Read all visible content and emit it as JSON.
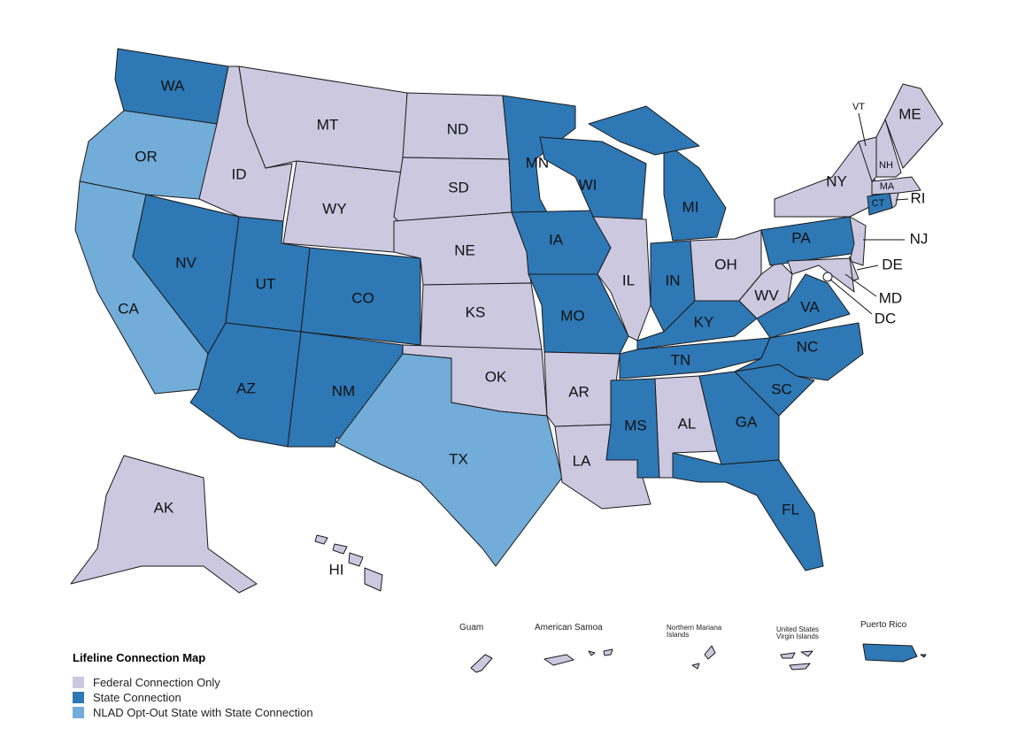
{
  "map": {
    "title": "Lifeline Connection Map",
    "legend": [
      {
        "label": "Federal Connection Only",
        "color": "#cbc8e0"
      },
      {
        "label": "State Connection",
        "color": "#2e78b5"
      },
      {
        "label": "NLAD Opt-Out State with State Connection",
        "color": "#72acd8"
      }
    ],
    "states": [
      {
        "label": "WA",
        "category": 1
      },
      {
        "label": "OR",
        "category": 2
      },
      {
        "label": "CA",
        "category": 2
      },
      {
        "label": "ID",
        "category": 0
      },
      {
        "label": "NV",
        "category": 1
      },
      {
        "label": "MT",
        "category": 0
      },
      {
        "label": "WY",
        "category": 0
      },
      {
        "label": "UT",
        "category": 1
      },
      {
        "label": "CO",
        "category": 1
      },
      {
        "label": "AZ",
        "category": 1
      },
      {
        "label": "NM",
        "category": 1
      },
      {
        "label": "ND",
        "category": 0
      },
      {
        "label": "SD",
        "category": 0
      },
      {
        "label": "NE",
        "category": 0
      },
      {
        "label": "KS",
        "category": 0
      },
      {
        "label": "OK",
        "category": 0
      },
      {
        "label": "TX",
        "category": 2
      },
      {
        "label": "MN",
        "category": 1
      },
      {
        "label": "IA",
        "category": 1
      },
      {
        "label": "MO",
        "category": 1
      },
      {
        "label": "AR",
        "category": 0
      },
      {
        "label": "LA",
        "category": 0
      },
      {
        "label": "WI",
        "category": 1
      },
      {
        "label": "MI",
        "category": 1
      },
      {
        "label": "IL",
        "category": 0
      },
      {
        "label": "IN",
        "category": 1
      },
      {
        "label": "OH",
        "category": 0
      },
      {
        "label": "KY",
        "category": 1
      },
      {
        "label": "TN",
        "category": 1
      },
      {
        "label": "MS",
        "category": 1
      },
      {
        "label": "AL",
        "category": 0
      },
      {
        "label": "GA",
        "category": 1
      },
      {
        "label": "FL",
        "category": 1
      },
      {
        "label": "SC",
        "category": 1
      },
      {
        "label": "NC",
        "category": 1
      },
      {
        "label": "VA",
        "category": 1
      },
      {
        "label": "WV",
        "category": 0
      },
      {
        "label": "PA",
        "category": 1
      },
      {
        "label": "NY",
        "category": 0
      },
      {
        "label": "NJ",
        "category": 0
      },
      {
        "label": "DE",
        "category": 0
      },
      {
        "label": "MD",
        "category": 0
      },
      {
        "label": "DC",
        "category": 0
      },
      {
        "label": "CT",
        "category": 1
      },
      {
        "label": "RI",
        "category": 0
      },
      {
        "label": "MA",
        "category": 0
      },
      {
        "label": "VT",
        "category": 0
      },
      {
        "label": "NH",
        "category": 0
      },
      {
        "label": "ME",
        "category": 0
      },
      {
        "label": "AK",
        "category": 0
      },
      {
        "label": "HI",
        "category": 0
      }
    ],
    "territories": [
      {
        "label": "Guam",
        "category": 0
      },
      {
        "label": "American Samoa",
        "category": 0
      },
      {
        "label": "Northern Mariana Islands",
        "category": 0
      },
      {
        "label": "United States Virgin Islands",
        "category": 0
      },
      {
        "label": "Puerto Rico",
        "category": 1
      }
    ]
  }
}
